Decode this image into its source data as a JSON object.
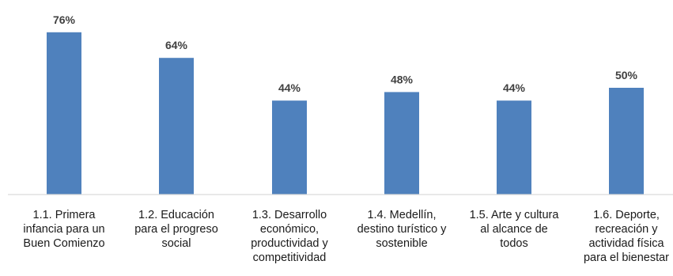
{
  "chart_data": {
    "type": "bar",
    "categories": [
      [
        "1.1. Primera",
        "infancia para un",
        "Buen Comienzo"
      ],
      [
        "1.2. Educación",
        "para el progreso",
        "social"
      ],
      [
        "1.3. Desarrollo",
        "económico,",
        "productividad y",
        "competitividad"
      ],
      [
        "1.4. Medellín,",
        "destino turístico y",
        "sostenible"
      ],
      [
        "1.5. Arte y cultura",
        "al alcance de",
        "todos"
      ],
      [
        "1.6. Deporte,",
        "recreación y",
        "actividad física",
        "para el bienestar"
      ]
    ],
    "values": [
      76,
      64,
      44,
      48,
      44,
      50
    ],
    "data_labels": [
      "76%",
      "64%",
      "44%",
      "48%",
      "44%",
      "50%"
    ],
    "title": "",
    "xlabel": "",
    "ylabel": "",
    "ylim": [
      0,
      80
    ],
    "grid": false,
    "legend": "none",
    "colors": {
      "bar": "#4f81bd",
      "axis": "#d9d9d9",
      "label": "#404040"
    }
  }
}
